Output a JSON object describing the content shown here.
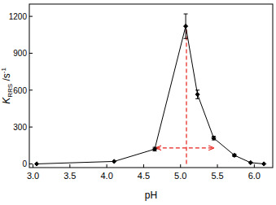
{
  "chart_data": {
    "type": "line",
    "x_label": "pH",
    "y_label": {
      "main": "K",
      "sub": "RRS",
      "unit": " /s",
      "sup": "-1"
    },
    "x": [
      3.05,
      4.1,
      4.65,
      5.07,
      5.23,
      5.45,
      5.73,
      5.95,
      6.13
    ],
    "series": [
      {
        "color": "#000000",
        "marker": "diamond",
        "line_style": "solid",
        "values": [
          0,
          20,
          120,
          1120,
          565,
          210,
          70,
          10,
          0
        ],
        "errors": [
          null,
          null,
          15,
          100,
          35,
          15,
          10,
          null,
          null
        ]
      }
    ],
    "reference_lines": {
      "color": "#e8201b",
      "line_style": "dashed",
      "vertical": {
        "x": 5.08,
        "y": [
          0,
          1120
        ]
      },
      "double_arrow": {
        "x": [
          4.67,
          5.45
        ],
        "y": 130
      }
    },
    "xlim": [
      2.95,
      6.25
    ],
    "ylim": [
      -30,
      1300
    ],
    "xticks": [
      {
        "value": 3,
        "label": "3.0"
      },
      {
        "value": 3.5,
        "label": "3.5"
      },
      {
        "value": 4,
        "label": "4.0"
      },
      {
        "value": 4.5,
        "label": "4.5"
      },
      {
        "value": 5,
        "label": "5.0"
      },
      {
        "value": 5.5,
        "label": "5.5"
      },
      {
        "value": 6,
        "label": "6.0"
      }
    ],
    "yticks": [
      0,
      300,
      600,
      900,
      1200
    ],
    "grid": false
  }
}
